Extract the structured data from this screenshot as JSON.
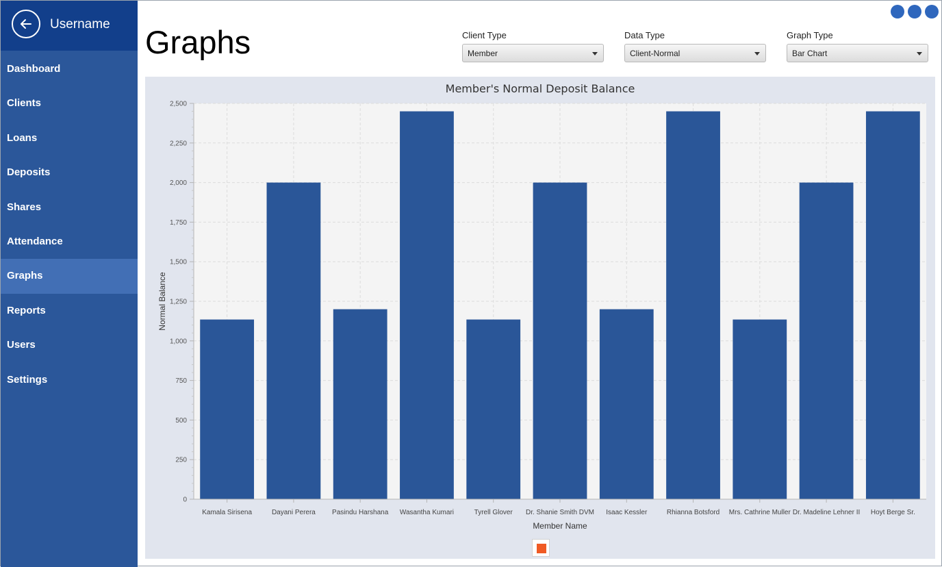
{
  "sidebar": {
    "username": "Username",
    "items": [
      {
        "label": "Dashboard"
      },
      {
        "label": "Clients"
      },
      {
        "label": "Loans"
      },
      {
        "label": "Deposits"
      },
      {
        "label": "Shares"
      },
      {
        "label": "Attendance"
      },
      {
        "label": "Graphs"
      },
      {
        "label": "Reports"
      },
      {
        "label": "Users"
      },
      {
        "label": "Settings"
      }
    ],
    "active_item": "Graphs"
  },
  "header": {
    "title": "Graphs"
  },
  "filters": {
    "client_type": {
      "label": "Client Type",
      "value": "Member"
    },
    "data_type": {
      "label": "Data Type",
      "value": "Client-Normal"
    },
    "graph_type": {
      "label": "Graph Type",
      "value": "Bar Chart"
    }
  },
  "colors": {
    "sidebar_bg": "#2b579a",
    "sidebar_header_bg": "#123f8b",
    "active_item_bg": "#426fb5",
    "bar_color": "#2a5698",
    "legend_swatch": "#f05a24",
    "window_dot": "#2f67bd"
  },
  "chart_data": {
    "type": "bar",
    "title": "Member's Normal Deposit Balance",
    "xlabel": "Member Name",
    "ylabel": "Normal Balance",
    "ylim": [
      0,
      2500
    ],
    "yticks": [
      0,
      250,
      500,
      750,
      1000,
      1250,
      1500,
      1750,
      2000,
      2250,
      2500
    ],
    "ytick_labels": [
      "0",
      "250",
      "500",
      "750",
      "1,000",
      "1,250",
      "1,500",
      "1,750",
      "2,000",
      "2,250",
      "2,500"
    ],
    "grid": true,
    "categories": [
      "Kamala Sirisena",
      "Dayani Perera",
      "Pasindu Harshana",
      "Wasantha Kumari",
      "Tyrell Glover",
      "Dr. Shanie Smith DVM",
      "Isaac Kessler",
      "Rhianna Botsford",
      "Mrs. Cathrine Muller",
      "Dr. Madeline Lehner II",
      "Hoyt Berge Sr."
    ],
    "values": [
      1135,
      2000,
      1200,
      2450,
      1135,
      2000,
      1200,
      2450,
      1135,
      2000,
      2450
    ],
    "legend": "bottom-center"
  }
}
